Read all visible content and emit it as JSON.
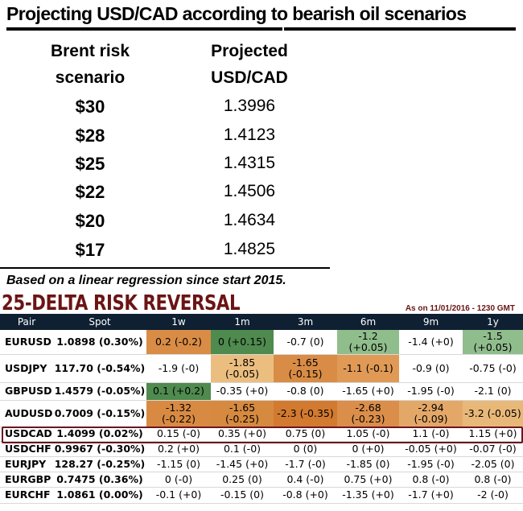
{
  "scenario": {
    "title": "Projecting USD/CAD according to bearish oil scenarios",
    "col1_header": [
      "Brent risk",
      "scenario"
    ],
    "col2_header": [
      "Projected",
      "USD/CAD"
    ],
    "rows": [
      {
        "brent": "$30",
        "usdcad": "1.3996"
      },
      {
        "brent": "$28",
        "usdcad": "1.4123"
      },
      {
        "brent": "$25",
        "usdcad": "1.4315"
      },
      {
        "brent": "$22",
        "usdcad": "1.4506"
      },
      {
        "brent": "$20",
        "usdcad": "1.4634"
      },
      {
        "brent": "$17",
        "usdcad": "1.4825"
      }
    ],
    "note": "Based on a linear regression since start 2015."
  },
  "risk_reversal": {
    "title": "25-DELTA RISK REVERSAL",
    "as_of": "As on 11/01/2016 - 1230 GMT",
    "headers": [
      "Pair",
      "Spot",
      "1w",
      "1m",
      "3m",
      "6m",
      "9m",
      "1y"
    ],
    "highlighted_pair": "USDCAD",
    "highlight_color": "#6b1420",
    "colors": {
      "orange": "#d98c45",
      "dark_orange": "#d27a30",
      "light_orange": "#ebbe80",
      "pale_orange": "#e5ad6c",
      "dark_green": "#4f8a4f",
      "light_green": "#90bd8c",
      "header": "#0e2032"
    },
    "rows": [
      {
        "pair": "EURUSD",
        "spot": "1.0898 (0.30%)",
        "cells": [
          "0.2 (-0.2)",
          "0 (+0.15)",
          "-0.7 (0)",
          "-1.2 (+0.05)",
          "-1.4 (+0)",
          "-1.5 (+0.05)"
        ],
        "fills": [
          "#d98c45",
          "#4f8a4f",
          "",
          "#90bd8c",
          "",
          "#90bd8c"
        ]
      },
      {
        "pair": "USDJPY",
        "spot": "117.70 (-0.54%)",
        "cells": [
          "-1.9 (-0)",
          "-1.85 (-0.05)",
          "-1.65 (-0.15)",
          "-1.1 (-0.1)",
          "-0.9 (0)",
          "-0.75 (-0)"
        ],
        "fills": [
          "",
          "#ebbe80",
          "#d98c45",
          "#e09a55",
          "",
          ""
        ]
      },
      {
        "pair": "GBPUSD",
        "spot": "1.4579 (-0.05%)",
        "cells": [
          "0.1 (+0.2)",
          "-0.35 (+0)",
          "-0.8 (0)",
          "-1.65 (+0)",
          "-1.95 (-0)",
          "-2.1 (0)"
        ],
        "fills": [
          "#4f8a4f",
          "",
          "",
          "",
          "",
          ""
        ]
      },
      {
        "pair": "AUDUSD",
        "spot": "0.7009 (-0.15%)",
        "cells": [
          "-1.32 (-0.22)",
          "-1.65 (-0.25)",
          "-2.3 (-0.35)",
          "-2.68 (-0.23)",
          "-2.94 (-0.09)",
          "-3.2 (-0.05)"
        ],
        "fills": [
          "#d98a42",
          "#d68a40",
          "#d27a30",
          "#db8e4a",
          "#e3a868",
          "#e8b878"
        ]
      },
      {
        "pair": "USDCAD",
        "spot": "1.4099 (0.02%)",
        "cells": [
          "0.15 (-0)",
          "0.35 (+0)",
          "0.75 (0)",
          "1.05 (-0)",
          "1.1 (-0)",
          "1.15 (+0)"
        ],
        "fills": [
          "",
          "",
          "",
          "",
          "",
          ""
        ]
      },
      {
        "pair": "USDCHF",
        "spot": "0.9967 (-0.30%)",
        "cells": [
          "0.2 (+0)",
          "0.1 (-0)",
          "0 (0)",
          "0 (+0)",
          "-0.05 (+0)",
          "-0.07 (-0)"
        ],
        "fills": [
          "",
          "",
          "",
          "",
          "",
          ""
        ]
      },
      {
        "pair": "EURJPY",
        "spot": "128.27 (-0.25%)",
        "cells": [
          "-1.15 (0)",
          "-1.45 (+0)",
          "-1.7 (-0)",
          "-1.85 (0)",
          "-1.95 (-0)",
          "-2.05 (0)"
        ],
        "fills": [
          "",
          "",
          "",
          "",
          "",
          ""
        ]
      },
      {
        "pair": "EURGBP",
        "spot": "0.7475 (0.36%)",
        "cells": [
          "0 (-0)",
          "0.25 (0)",
          "0.4 (-0)",
          "0.75 (+0)",
          "0.8 (-0)",
          "0.8 (-0)"
        ],
        "fills": [
          "",
          "",
          "",
          "",
          "",
          ""
        ]
      },
      {
        "pair": "EURCHF",
        "spot": "1.0861 (0.00%)",
        "cells": [
          "-0.1 (+0)",
          "-0.15 (0)",
          "-0.8 (+0)",
          "-1.35 (+0)",
          "-1.7 (+0)",
          "-2 (-0)"
        ],
        "fills": [
          "",
          "",
          "",
          "",
          "",
          ""
        ]
      }
    ]
  }
}
